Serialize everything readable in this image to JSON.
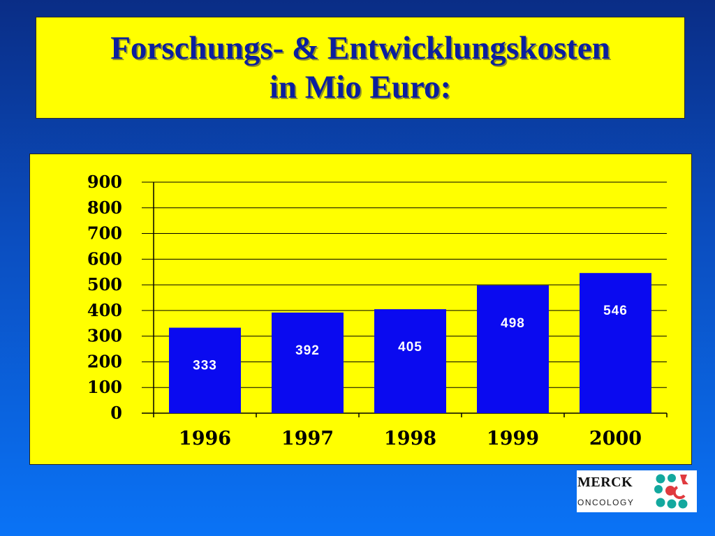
{
  "slide": {
    "title_line1": "Forschungs- & Entwicklungskosten",
    "title_line2": "in Mio Euro:"
  },
  "chart_data": {
    "type": "bar",
    "categories": [
      "1996",
      "1997",
      "1998",
      "1999",
      "2000"
    ],
    "values": [
      333,
      392,
      405,
      498,
      546
    ],
    "data_labels": [
      "333",
      "392",
      "405",
      "498",
      "546"
    ],
    "title": "",
    "xlabel": "",
    "ylabel": "",
    "ylim": [
      0,
      900
    ],
    "yticks": [
      "0",
      "100",
      "200",
      "300",
      "400",
      "500",
      "600",
      "700",
      "800",
      "900"
    ],
    "grid": true,
    "legend": "none",
    "colors": {
      "bar": "#0a0af0",
      "background": "#ffff00",
      "label": "#ffffff"
    }
  },
  "logo": {
    "name": "MERCK",
    "subtitle": "ONCOLOGY",
    "icon": "merck-oncology-dots-icon"
  }
}
